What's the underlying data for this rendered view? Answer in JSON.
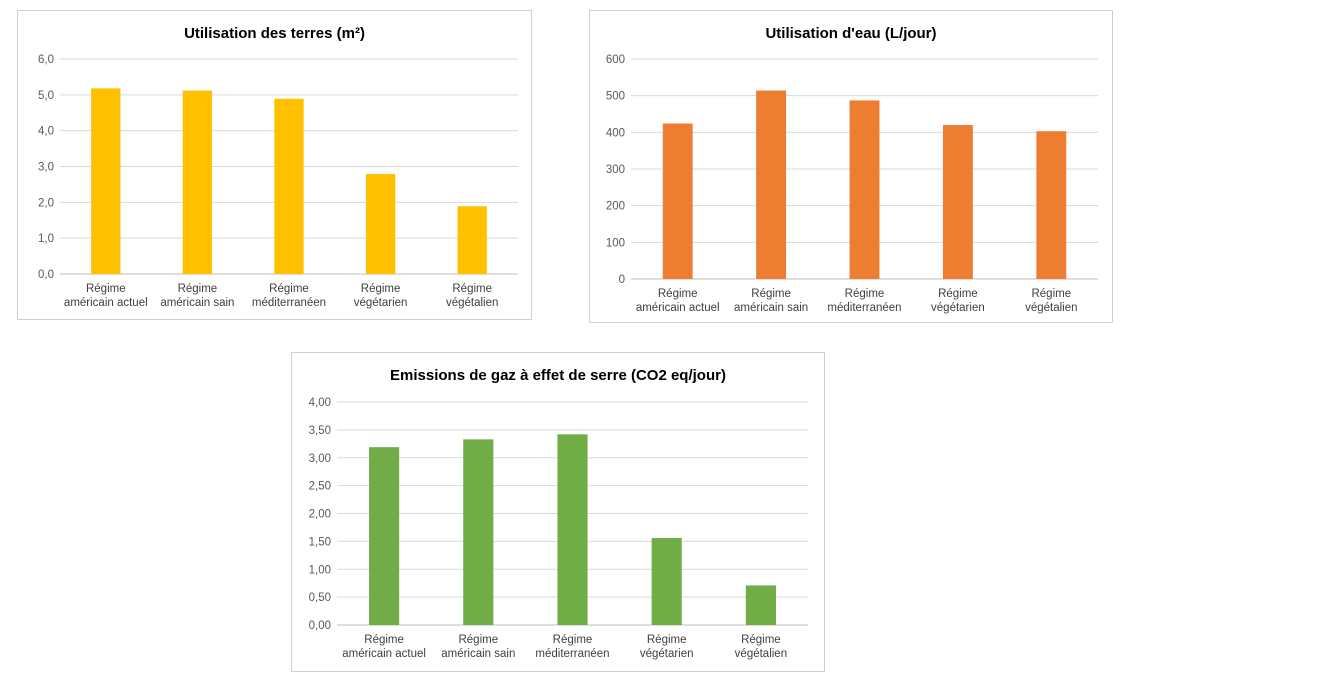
{
  "chart_data": [
    {
      "type": "bar",
      "title": "Utilisation des terres (m²)",
      "categories": [
        [
          "Régime",
          "américain actuel"
        ],
        [
          "Régime",
          "américain sain"
        ],
        [
          "Régime",
          "méditerranéen"
        ],
        [
          "Régime",
          "végétarien"
        ],
        [
          "Régime",
          "végétalien"
        ]
      ],
      "values": [
        5.18,
        5.12,
        4.89,
        2.79,
        1.89
      ],
      "ylim": [
        0,
        6
      ],
      "yticks": [
        "0,0",
        "1,0",
        "2,0",
        "3,0",
        "4,0",
        "5,0",
        "6,0"
      ],
      "xlabel": "",
      "ylabel": "",
      "grid": true,
      "legend": "none",
      "color": "#FFC000"
    },
    {
      "type": "bar",
      "title": "Utilisation d'eau (L/jour)",
      "categories": [
        [
          "Régime",
          "américain actuel"
        ],
        [
          "Régime",
          "américain sain"
        ],
        [
          "Régime",
          "méditerranéen"
        ],
        [
          "Régime",
          "végétarien"
        ],
        [
          "Régime",
          "végétalien"
        ]
      ],
      "values": [
        424,
        514,
        487,
        420,
        403
      ],
      "ylim": [
        0,
        600
      ],
      "yticks": [
        "0",
        "100",
        "200",
        "300",
        "400",
        "500",
        "600"
      ],
      "xlabel": "",
      "ylabel": "",
      "grid": true,
      "legend": "none",
      "color": "#ED7D31"
    },
    {
      "type": "bar",
      "title": "Emissions de gaz à effet de serre (CO2 eq/jour)",
      "categories": [
        [
          "Régime",
          "américain actuel"
        ],
        [
          "Régime",
          "américain sain"
        ],
        [
          "Régime",
          "méditerranéen"
        ],
        [
          "Régime",
          "végétarien"
        ],
        [
          "Régime",
          "végétalien"
        ]
      ],
      "values": [
        3.19,
        3.33,
        3.42,
        1.56,
        0.71
      ],
      "ylim": [
        0,
        4
      ],
      "yticks": [
        "0,00",
        "0,50",
        "1,00",
        "1,50",
        "2,00",
        "2,50",
        "3,00",
        "3,50",
        "4,00"
      ],
      "xlabel": "",
      "ylabel": "",
      "grid": true,
      "legend": "none",
      "color": "#70AD47"
    }
  ]
}
